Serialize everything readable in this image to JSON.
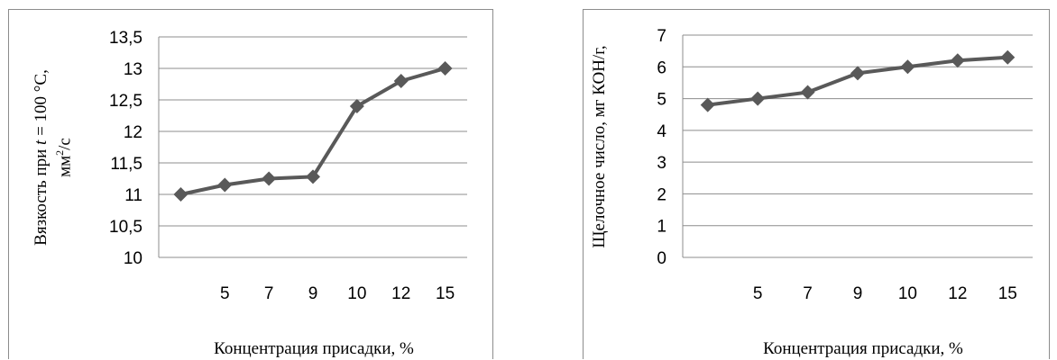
{
  "chart_data": [
    {
      "type": "line",
      "categories": [
        "",
        "5",
        "7",
        "9",
        "10",
        "12",
        "15"
      ],
      "values": [
        11.0,
        11.15,
        11.25,
        11.28,
        12.4,
        12.8,
        13.0
      ],
      "yticks": [
        "10",
        "10,5",
        "11",
        "11,5",
        "12",
        "12,5",
        "13",
        "13,5"
      ],
      "ylim": [
        10,
        13.5
      ],
      "ystep": 0.5,
      "ylabel_line1_pre": "Вязкость при ",
      "ylabel_line1_var": "t",
      "ylabel_line1_post": " = 100 °С,",
      "ylabel_line2_pre": "мм",
      "ylabel_line2_sup": "2",
      "ylabel_line2_post": "/с",
      "xlabel": "Концентрация присадки, %",
      "grid": true,
      "line_color": "#595959",
      "marker": "diamond"
    },
    {
      "type": "line",
      "categories": [
        "",
        "5",
        "7",
        "9",
        "10",
        "12",
        "15"
      ],
      "values": [
        4.8,
        5.0,
        5.2,
        5.8,
        6.0,
        6.2,
        6.3
      ],
      "yticks": [
        "0",
        "1",
        "2",
        "3",
        "4",
        "5",
        "6",
        "7"
      ],
      "ylim": [
        0,
        7
      ],
      "ystep": 1,
      "ylabel": "Щелочное число, мг КОН/г,",
      "xlabel": "Концентрация присадки, %",
      "grid": true,
      "line_color": "#595959",
      "marker": "diamond"
    }
  ]
}
